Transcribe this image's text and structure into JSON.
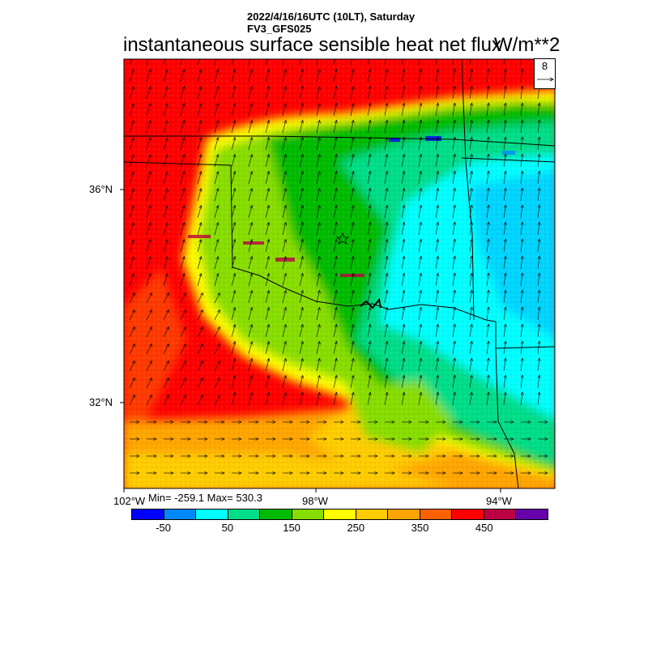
{
  "header": {
    "date_line": "2022/4/16/16UTC (10LT), Saturday",
    "model": "FV3_GFS025",
    "title": "instantaneous surface sensible heat net flux",
    "units": "W/m**2"
  },
  "axes": {
    "lat_labels": [
      "36°N",
      "32°N"
    ],
    "lon_labels": [
      "102°W",
      "98°W",
      "94°W"
    ]
  },
  "stats": {
    "text": "Min= -259.1 Max= 530.3"
  },
  "reference_vector": {
    "label": "8"
  },
  "colorbar": {
    "colors": [
      "#0000ff",
      "#0088ff",
      "#00ffff",
      "#00dd88",
      "#00bb00",
      "#88dd00",
      "#ffff00",
      "#ffcc00",
      "#ffa500",
      "#ff6000",
      "#ff0000",
      "#bb0044",
      "#6600aa"
    ],
    "labels": [
      "-50",
      "50",
      "150",
      "250",
      "350",
      "450"
    ]
  },
  "regions": {
    "red_north": "#ff0000",
    "red_sw": "#ff0000",
    "orange_south": "#ffa500",
    "yellow_belt": "#ffff00",
    "green_band": "#88dd00",
    "teal_east": "#00dd88",
    "cyan_east": "#00ffff"
  }
}
